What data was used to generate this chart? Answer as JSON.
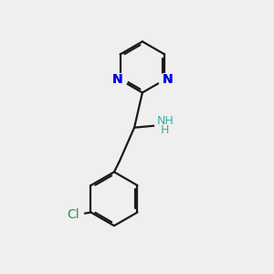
{
  "background_color": "#efefef",
  "bond_color": "#1a1a1a",
  "nitrogen_color": "#0000ee",
  "chlorine_color": "#2e8b57",
  "nh_color": "#3aafa9",
  "line_width": 1.6,
  "figsize": [
    3.0,
    3.0
  ],
  "dpi": 100,
  "xlim": [
    0,
    10
  ],
  "ylim": [
    0,
    10
  ]
}
